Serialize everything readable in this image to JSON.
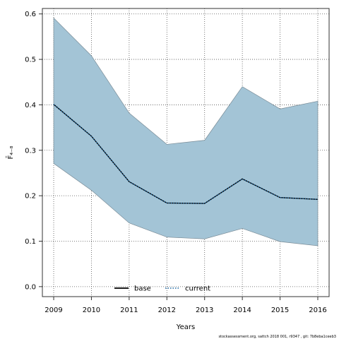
{
  "chart_data": {
    "type": "area",
    "x": [
      2009,
      2010,
      2011,
      2012,
      2013,
      2014,
      2015,
      2016
    ],
    "band": {
      "lower": [
        0.271,
        0.212,
        0.14,
        0.109,
        0.105,
        0.128,
        0.099,
        0.09
      ],
      "upper": [
        0.591,
        0.508,
        0.382,
        0.313,
        0.322,
        0.44,
        0.391,
        0.408
      ],
      "color": "#a3c4d6"
    },
    "series": [
      {
        "name": "base",
        "values": [
          0.401,
          0.331,
          0.231,
          0.184,
          0.183,
          0.237,
          0.196,
          0.192
        ],
        "color": "#000000",
        "style": "solid"
      },
      {
        "name": "current",
        "values": [
          0.401,
          0.331,
          0.231,
          0.184,
          0.183,
          0.237,
          0.196,
          0.192
        ],
        "color": "#1f6aa5",
        "style": "dotted"
      }
    ],
    "xlabel": "Years",
    "ylabel": "F̄₄₋₈",
    "xlim": [
      2008.7,
      2016.3
    ],
    "ylim": [
      -0.022,
      0.612
    ],
    "yticks": [
      "0.0",
      "0.1",
      "0.2",
      "0.3",
      "0.4",
      "0.5",
      "0.6"
    ],
    "xticks": [
      "2009",
      "2010",
      "2011",
      "2012",
      "2013",
      "2014",
      "2015",
      "2016"
    ],
    "grid": true,
    "legend_position": "bottom-center",
    "footer": "stockassessment.org, sattch 2018 001, r9347 , git: 7b8eba1ceeb3"
  }
}
